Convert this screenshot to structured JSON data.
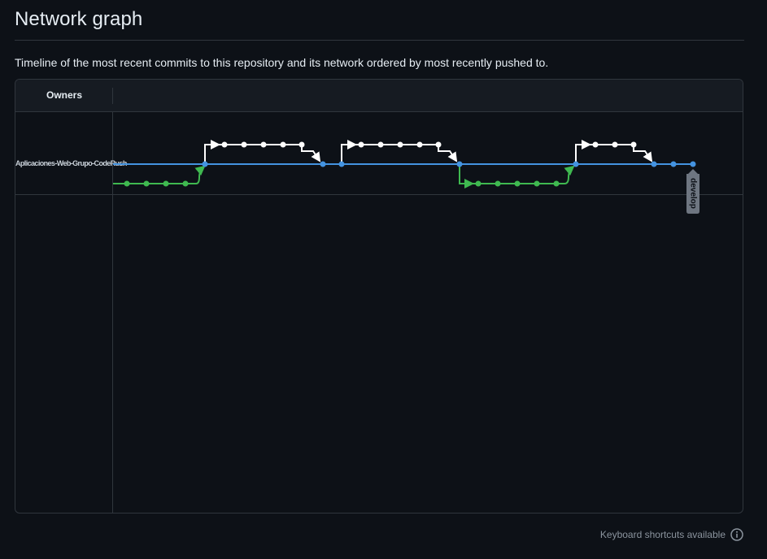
{
  "page": {
    "title": "Network graph",
    "description": "Timeline of the most recent commits to this repository and its network ordered by most recently pushed to."
  },
  "graph": {
    "owners_header": "Owners",
    "owners": [
      {
        "name": "Aplicaciones-Web-Grupo-CodeRush"
      }
    ],
    "branch_label": "develop",
    "colors": {
      "main": "#4493e0",
      "feature_a": "#ffffff",
      "feature_b": "#3fb950",
      "label_bg": "#6e7681"
    }
  },
  "footer": {
    "shortcuts_text": "Keyboard shortcuts available",
    "icon": "info-icon"
  }
}
